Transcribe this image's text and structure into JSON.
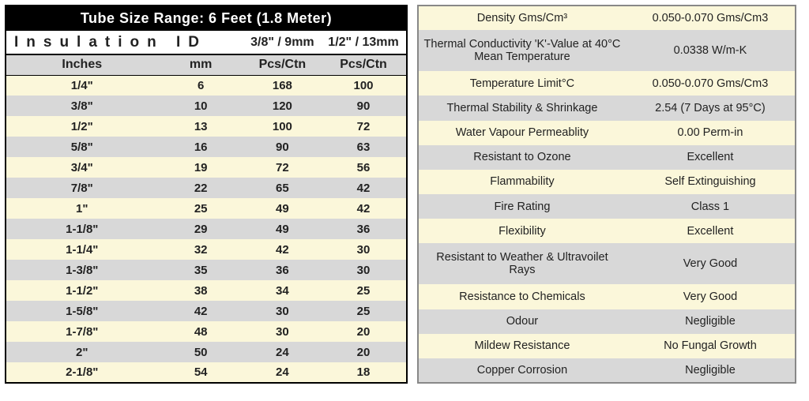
{
  "colors": {
    "cream": "#fbf7da",
    "grey": "#d8d8d8",
    "black": "#000000",
    "white": "#ffffff",
    "border_right": "#888888",
    "text": "#222222"
  },
  "left": {
    "title": "Tube Size Range: 6 Feet (1.8 Meter)",
    "insulation_label": "Insulation ID",
    "size_heads": [
      "3/8\" / 9mm",
      "1/2\" / 13mm"
    ],
    "col_heads": [
      "Inches",
      "mm",
      "Pcs/Ctn",
      "Pcs/Ctn"
    ],
    "rows": [
      {
        "inches": "1/4\"",
        "mm": "6",
        "a": "168",
        "b": "100"
      },
      {
        "inches": "3/8\"",
        "mm": "10",
        "a": "120",
        "b": "90"
      },
      {
        "inches": "1/2\"",
        "mm": "13",
        "a": "100",
        "b": "72"
      },
      {
        "inches": "5/8\"",
        "mm": "16",
        "a": "90",
        "b": "63"
      },
      {
        "inches": "3/4\"",
        "mm": "19",
        "a": "72",
        "b": "56"
      },
      {
        "inches": "7/8\"",
        "mm": "22",
        "a": "65",
        "b": "42"
      },
      {
        "inches": "1\"",
        "mm": "25",
        "a": "49",
        "b": "42"
      },
      {
        "inches": "1-1/8\"",
        "mm": "29",
        "a": "49",
        "b": "36"
      },
      {
        "inches": "1-1/4\"",
        "mm": "32",
        "a": "42",
        "b": "30"
      },
      {
        "inches": "1-3/8\"",
        "mm": "35",
        "a": "36",
        "b": "30"
      },
      {
        "inches": "1-1/2\"",
        "mm": "38",
        "a": "34",
        "b": "25"
      },
      {
        "inches": "1-5/8\"",
        "mm": "42",
        "a": "30",
        "b": "25"
      },
      {
        "inches": "1-7/8\"",
        "mm": "48",
        "a": "30",
        "b": "20"
      },
      {
        "inches": "2\"",
        "mm": "50",
        "a": "24",
        "b": "20"
      },
      {
        "inches": "2-1/8\"",
        "mm": "54",
        "a": "24",
        "b": "18"
      }
    ]
  },
  "right": {
    "rows": [
      {
        "prop": "Density Gms/Cm³",
        "val": "0.050-0.070 Gms/Cm3",
        "tall": false
      },
      {
        "prop": "Thermal Conductivity 'K'-Value at 40°C Mean Temperature",
        "val": "0.0338 W/m-K",
        "tall": true
      },
      {
        "prop": "Temperature Limit°C",
        "val": "0.050-0.070 Gms/Cm3",
        "tall": false
      },
      {
        "prop": "Thermal Stability & Shrinkage",
        "val": "2.54 (7 Days at 95°C)",
        "tall": false
      },
      {
        "prop": "Water Vapour Permeablity",
        "val": "0.00 Perm-in",
        "tall": false
      },
      {
        "prop": "Resistant to Ozone",
        "val": "Excellent",
        "tall": false
      },
      {
        "prop": "Flammability",
        "val": "Self Extinguishing",
        "tall": false
      },
      {
        "prop": "Fire Rating",
        "val": "Class 1",
        "tall": false
      },
      {
        "prop": "Flexibility",
        "val": "Excellent",
        "tall": false
      },
      {
        "prop": "Resistant to Weather & Ultravoilet Rays",
        "val": "Very Good",
        "tall": true
      },
      {
        "prop": "Resistance to Chemicals",
        "val": "Very Good",
        "tall": false
      },
      {
        "prop": "Odour",
        "val": "Negligible",
        "tall": false
      },
      {
        "prop": "Mildew Resistance",
        "val": "No Fungal Growth",
        "tall": false
      },
      {
        "prop": "Copper Corrosion",
        "val": "Negligible",
        "tall": false
      }
    ]
  }
}
